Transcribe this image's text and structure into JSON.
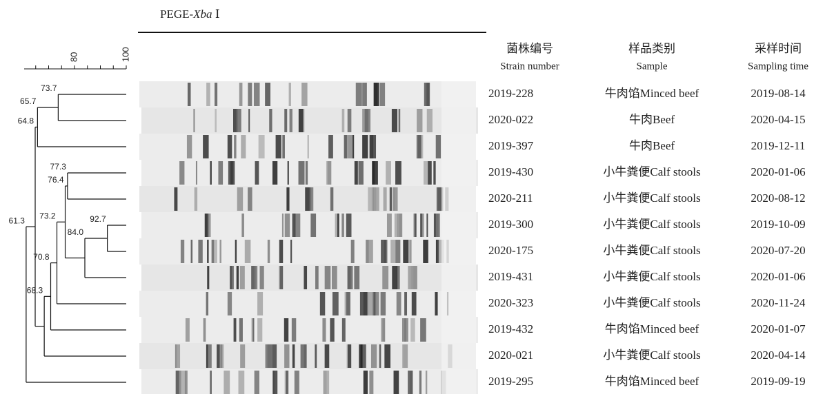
{
  "header": {
    "title_prefix": "PEGE-",
    "title_italic": "Xba",
    "title_suffix": " Ⅰ"
  },
  "scale": {
    "ticks": [
      "80",
      "100"
    ]
  },
  "columns": [
    {
      "zh": "菌株编号",
      "en": "Strain number"
    },
    {
      "zh": "样品类别",
      "en": "Sample"
    },
    {
      "zh": "采样时间",
      "en": "Sampling time"
    }
  ],
  "rows": [
    [
      "2019-228",
      "牛肉馅Minced beef",
      "2019-08-14"
    ],
    [
      "2020-022",
      "牛肉Beef",
      "2020-04-15"
    ],
    [
      "2019-397",
      "牛肉Beef",
      "2019-12-11"
    ],
    [
      "2019-430",
      "小牛粪便Calf stools",
      "2020-01-06"
    ],
    [
      "2020-211",
      "小牛粪便Calf stools",
      "2020-08-12"
    ],
    [
      "2019-300",
      "小牛粪便Calf stools",
      "2019-10-09"
    ],
    [
      "2020-175",
      "小牛粪便Calf stools",
      "2020-07-20"
    ],
    [
      "2019-431",
      "小牛粪便Calf stools",
      "2020-01-06"
    ],
    [
      "2020-323",
      "小牛粪便Calf stools",
      "2020-11-24"
    ],
    [
      "2019-432",
      "牛肉馅Minced beef",
      "2020-01-07"
    ],
    [
      "2020-021",
      "小牛粪便Calf stools",
      "2020-04-14"
    ],
    [
      "2019-295",
      "牛肉馅Minced beef",
      "2019-09-19"
    ]
  ],
  "nodes": [
    "73.7",
    "65.7",
    "77.3",
    "92.7",
    "84.0",
    "76.4",
    "73.2",
    "70.8",
    "68.3",
    "64.8",
    "61.3"
  ]
}
